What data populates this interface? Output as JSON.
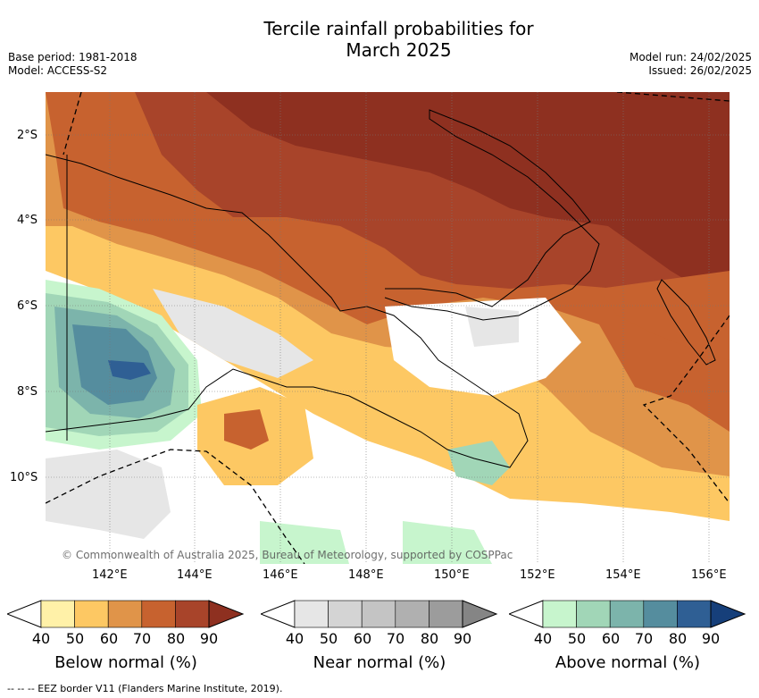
{
  "title_line1": "Tercile rainfall probabilities for",
  "title_line2": "March 2025",
  "base_period": "Base period: 1981-2018",
  "model": "Model: ACCESS-S2",
  "model_run": "Model run: 24/02/2025",
  "issued": "Issued: 26/02/2025",
  "lat_labels": [
    "2°S",
    "4°S",
    "6°S",
    "8°S",
    "10°S"
  ],
  "lon_labels": [
    "142°E",
    "144°E",
    "146°E",
    "148°E",
    "150°E",
    "152°E",
    "154°E",
    "156°E"
  ],
  "copyright": "© Commonwealth of Australia 2025, Bureau of Meteorology, supported by COSPPac",
  "colorbars": [
    {
      "title": "Below normal (%)",
      "ticks": [
        "40",
        "50",
        "60",
        "70",
        "80",
        "90"
      ],
      "colors": [
        "#fff1a8",
        "#fdc863",
        "#e09449",
        "#c7622f",
        "#a8442a",
        "#8e3020"
      ]
    },
    {
      "title": "Near normal (%)",
      "ticks": [
        "40",
        "50",
        "60",
        "70",
        "80",
        "90"
      ],
      "colors": [
        "#e6e6e6",
        "#d4d4d4",
        "#c4c4c4",
        "#b0b0b0",
        "#9c9c9c",
        "#858585"
      ]
    },
    {
      "title": "Above normal (%)",
      "ticks": [
        "40",
        "50",
        "60",
        "70",
        "80",
        "90"
      ],
      "colors": [
        "#c7f5cd",
        "#a1d6b7",
        "#7cb4ab",
        "#558d9e",
        "#2f5f94",
        "#163f7a"
      ]
    }
  ],
  "footer": "-- -- -- EEZ border V11 (Flanders Marine Institute, 2019)."
}
